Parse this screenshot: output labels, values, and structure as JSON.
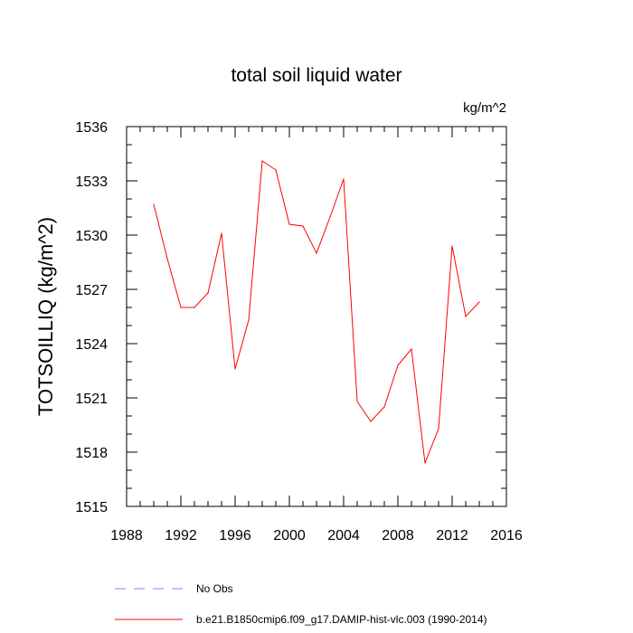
{
  "chart_data": {
    "type": "line",
    "title": "total soil liquid water",
    "units": "kg/m^2",
    "xlabel": "",
    "ylabel": "TOTSOILLIQ  (kg/m^2)",
    "xlim": [
      1988,
      2016
    ],
    "ylim": [
      1515,
      1536
    ],
    "x_ticks": [
      1988,
      1992,
      1996,
      2000,
      2004,
      2008,
      2012,
      2016
    ],
    "y_ticks": [
      1515,
      1518,
      1521,
      1524,
      1527,
      1530,
      1533,
      1536
    ],
    "grid": false,
    "series": [
      {
        "name": "b.e21.B1850cmip6.f09_g17.DAMIP-hist-vlc.003 (1990-2014)",
        "color": "#ff0000",
        "style": "solid",
        "x": [
          1990,
          1991,
          1992,
          1993,
          1994,
          1995,
          1996,
          1997,
          1998,
          1999,
          2000,
          2001,
          2002,
          2003,
          2004,
          2005,
          2006,
          2007,
          2008,
          2009,
          2010,
          2011,
          2012,
          2013,
          2014
        ],
        "values": [
          1531.7,
          1528.7,
          1526.0,
          1526.0,
          1526.8,
          1530.1,
          1522.6,
          1525.3,
          1534.1,
          1533.6,
          1530.6,
          1530.5,
          1529.0,
          1531.0,
          1533.1,
          1520.8,
          1519.7,
          1520.5,
          1522.8,
          1523.7,
          1517.4,
          1519.3,
          1529.4,
          1525.5,
          1526.3
        ]
      }
    ],
    "legend": [
      {
        "label": "No Obs",
        "color": "#8080ff",
        "style": "dashed"
      },
      {
        "label": "b.e21.B1850cmip6.f09_g17.DAMIP-hist-vlc.003 (1990-2014)",
        "color": "#ff0000",
        "style": "solid"
      }
    ]
  }
}
